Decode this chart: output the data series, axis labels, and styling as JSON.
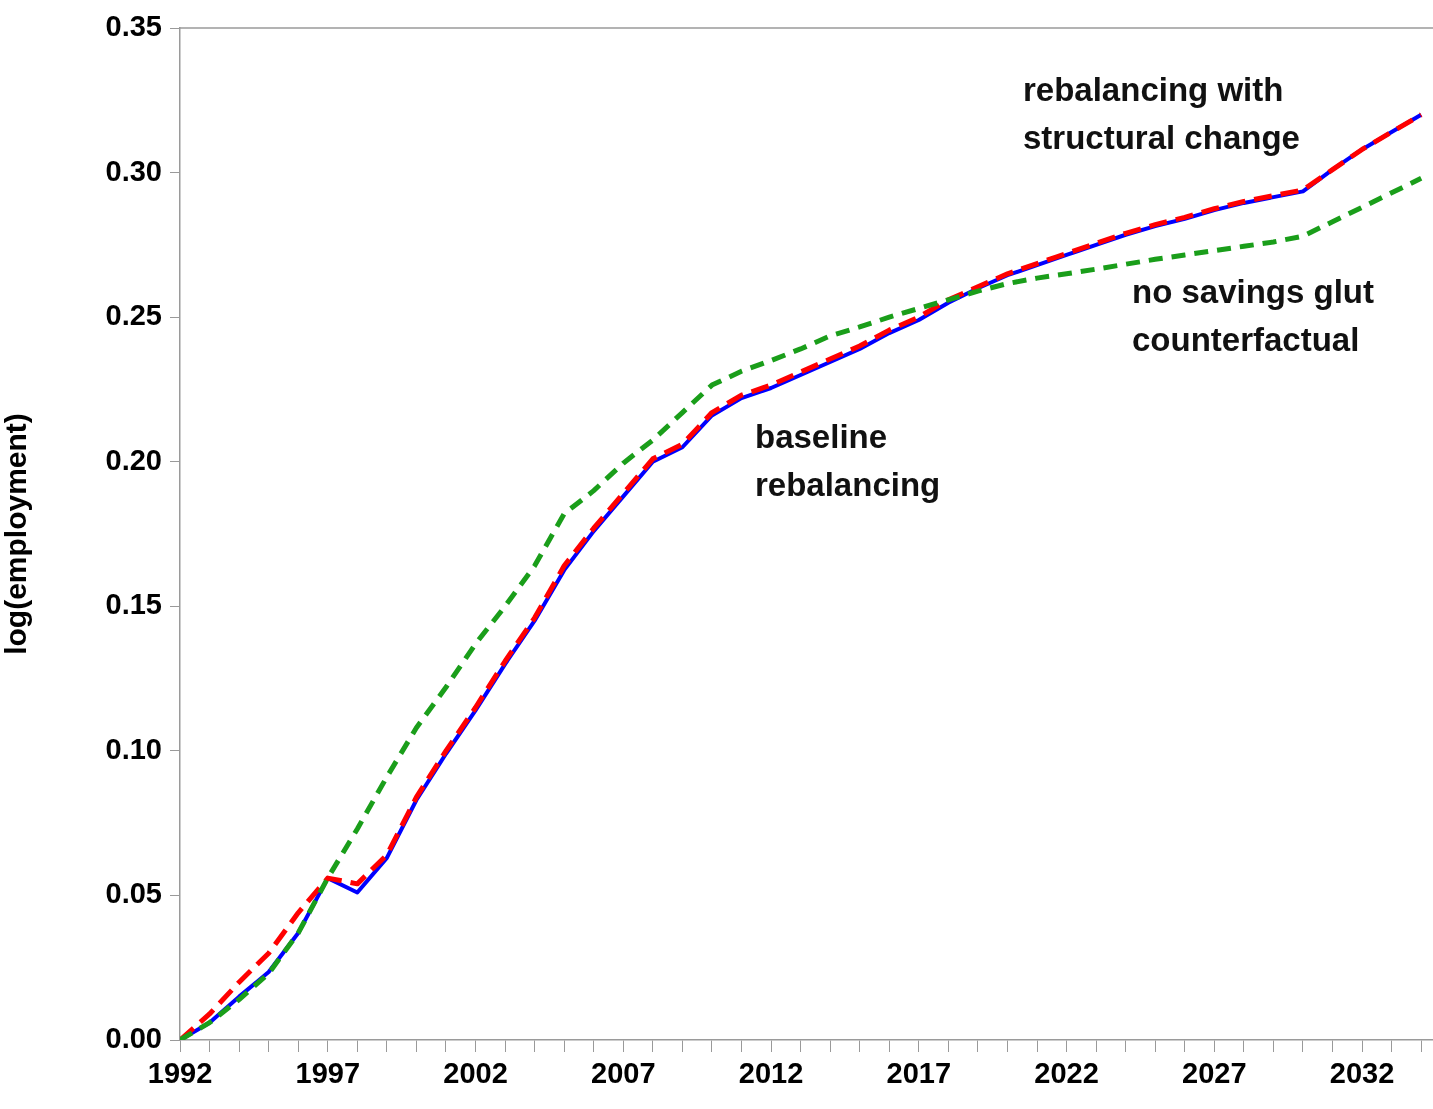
{
  "chart_data": {
    "type": "line",
    "ylabel": "log(employment)",
    "x": [
      1992,
      1993,
      1994,
      1995,
      1996,
      1997,
      1998,
      1999,
      2000,
      2001,
      2002,
      2003,
      2004,
      2005,
      2006,
      2007,
      2008,
      2009,
      2010,
      2011,
      2012,
      2013,
      2014,
      2015,
      2016,
      2017,
      2018,
      2019,
      2020,
      2021,
      2022,
      2023,
      2024,
      2025,
      2026,
      2027,
      2028,
      2029,
      2030,
      2031,
      2032,
      2033,
      2034
    ],
    "xlim": [
      1992,
      2034.4
    ],
    "xticks": [
      1992,
      {
        "value": 1993,
        "label": null
      },
      {
        "value": 1994,
        "label": null
      },
      {
        "value": 1995,
        "label": null
      },
      {
        "value": 1996,
        "label": null
      },
      1997,
      {
        "value": 1998,
        "label": null
      },
      {
        "value": 1999,
        "label": null
      },
      {
        "value": 2000,
        "label": null
      },
      {
        "value": 2001,
        "label": null
      },
      2002,
      {
        "value": 2003,
        "label": null
      },
      {
        "value": 2004,
        "label": null
      },
      {
        "value": 2005,
        "label": null
      },
      {
        "value": 2006,
        "label": null
      },
      2007,
      {
        "value": 2008,
        "label": null
      },
      {
        "value": 2009,
        "label": null
      },
      {
        "value": 2010,
        "label": null
      },
      {
        "value": 2011,
        "label": null
      },
      2012,
      {
        "value": 2013,
        "label": null
      },
      {
        "value": 2014,
        "label": null
      },
      {
        "value": 2015,
        "label": null
      },
      {
        "value": 2016,
        "label": null
      },
      2017,
      {
        "value": 2018,
        "label": null
      },
      {
        "value": 2019,
        "label": null
      },
      {
        "value": 2020,
        "label": null
      },
      {
        "value": 2021,
        "label": null
      },
      2022,
      {
        "value": 2023,
        "label": null
      },
      {
        "value": 2024,
        "label": null
      },
      {
        "value": 2025,
        "label": null
      },
      {
        "value": 2026,
        "label": null
      },
      2027,
      {
        "value": 2028,
        "label": null
      },
      {
        "value": 2029,
        "label": null
      },
      {
        "value": 2030,
        "label": null
      },
      {
        "value": 2031,
        "label": null
      },
      2032,
      {
        "value": 2033,
        "label": null
      },
      {
        "value": 2034,
        "label": null
      }
    ],
    "ylim": [
      0,
      0.35
    ],
    "yticks": [
      {
        "value": 0,
        "label": "0.00"
      },
      {
        "value": 0.05,
        "label": "0.05"
      },
      {
        "value": 0.1,
        "label": "0.10"
      },
      {
        "value": 0.15,
        "label": "0.15"
      },
      {
        "value": 0.2,
        "label": "0.20"
      },
      {
        "value": 0.25,
        "label": "0.25"
      },
      {
        "value": 0.3,
        "label": "0.30"
      },
      {
        "value": 0.35,
        "label": "0.35"
      }
    ],
    "grid": false,
    "legend": false,
    "marker": "none",
    "series": [
      {
        "name": "baseline rebalancing",
        "color": "#0000ff",
        "line_style": "solid",
        "values": [
          0,
          0.006,
          0.015,
          0.0235,
          0.037,
          0.056,
          0.051,
          0.063,
          0.083,
          0.099,
          0.114,
          0.13,
          0.145,
          0.1625,
          0.176,
          0.188,
          0.2,
          0.205,
          0.216,
          0.222,
          0.2255,
          0.23,
          0.2345,
          0.239,
          0.2445,
          0.249,
          0.255,
          0.26,
          0.2645,
          0.268,
          0.2715,
          0.275,
          0.2785,
          0.2815,
          0.284,
          0.287,
          0.2895,
          0.2915,
          0.2935,
          0.301,
          0.308,
          0.314,
          0.32
        ]
      },
      {
        "name": "rebalancing with structural change",
        "color": "#ff0000",
        "line_style": "dashed",
        "values": [
          0,
          0.009,
          0.02,
          0.03,
          0.044,
          0.056,
          0.054,
          0.064,
          0.084,
          0.1,
          0.115,
          0.131,
          0.146,
          0.164,
          0.177,
          0.189,
          0.201,
          0.206,
          0.217,
          0.223,
          0.2265,
          0.231,
          0.2355,
          0.24,
          0.2455,
          0.25,
          0.256,
          0.2605,
          0.265,
          0.2685,
          0.272,
          0.2755,
          0.279,
          0.282,
          0.2845,
          0.2875,
          0.29,
          0.292,
          0.294,
          0.301,
          0.308,
          0.314,
          0.32
        ]
      },
      {
        "name": "no savings glut counterfactual",
        "color": "#1a9e1a",
        "line_style": "dashed",
        "values": [
          0,
          0.006,
          0.014,
          0.023,
          0.037,
          0.056,
          0.073,
          0.091,
          0.108,
          0.122,
          0.137,
          0.15,
          0.164,
          0.182,
          0.19,
          0.1995,
          0.2075,
          0.217,
          0.2265,
          0.2313,
          0.235,
          0.239,
          0.2435,
          0.2466,
          0.25,
          0.253,
          0.256,
          0.259,
          0.2616,
          0.2635,
          0.265,
          0.2666,
          0.2683,
          0.27,
          0.2715,
          0.273,
          0.2745,
          0.276,
          0.278,
          0.283,
          0.288,
          0.293,
          0.298
        ]
      }
    ]
  }
}
